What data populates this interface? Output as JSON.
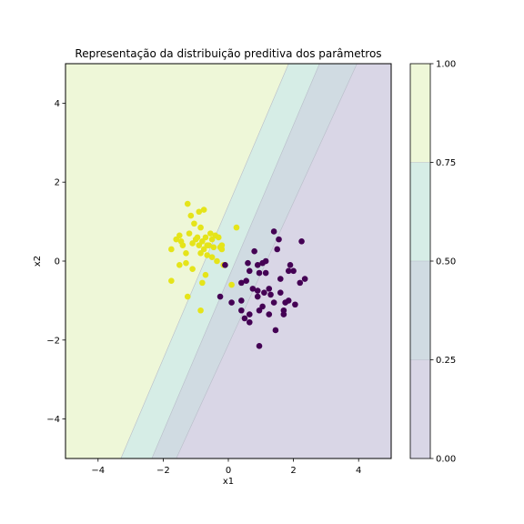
{
  "chart_data": {
    "type": "scatter",
    "title": "Representação da distribuição preditiva dos parâmetros",
    "xlabel": "x1",
    "ylabel": "x2",
    "xlim": [
      -5,
      5
    ],
    "ylim": [
      -5,
      5
    ],
    "x_ticks": [
      -4,
      -2,
      0,
      2,
      4
    ],
    "y_ticks": [
      -4,
      -2,
      0,
      2,
      4
    ],
    "x_tick_labels": [
      "−4",
      "−2",
      "0",
      "2",
      "4"
    ],
    "y_tick_labels": [
      "−4",
      "−2",
      "0",
      "2",
      "4"
    ],
    "grid": false,
    "contour": {
      "type": "filled_contour",
      "levels": [
        0.0,
        0.25,
        0.5,
        0.75,
        1.0
      ],
      "level_labels": [
        "0.00",
        "0.25",
        "0.50",
        "0.75",
        "1.00"
      ],
      "colors": [
        "#d9d6e6",
        "#d0dbe2",
        "#d6ede6",
        "#eef7d8"
      ],
      "boundaries": [
        [
          [
            -1.6,
            -5
          ],
          [
            3.95,
            5
          ]
        ],
        [
          [
            -2.35,
            -5
          ],
          [
            2.8,
            5
          ]
        ],
        [
          [
            -3.3,
            -5
          ],
          [
            1.85,
            5
          ]
        ]
      ]
    },
    "colorbar": {
      "ticks": [
        0.0,
        0.25,
        0.5,
        0.75,
        1.0
      ],
      "tick_labels": [
        "0.00",
        "0.25",
        "0.50",
        "0.75",
        "1.00"
      ]
    },
    "series": [
      {
        "class": 1,
        "color": "#e5e419",
        "points": [
          [
            -1.6,
            0.55
          ],
          [
            -1.5,
            0.65
          ],
          [
            -1.4,
            0.4
          ],
          [
            -1.3,
            0.2
          ],
          [
            -1.2,
            0.7
          ],
          [
            -1.1,
            0.45
          ],
          [
            -1.0,
            0.55
          ],
          [
            -0.9,
            0.4
          ],
          [
            -0.85,
            0.2
          ],
          [
            -0.8,
            0.5
          ],
          [
            -0.75,
            0.3
          ],
          [
            -0.7,
            0.6
          ],
          [
            -0.65,
            0.15
          ],
          [
            -0.6,
            0.4
          ],
          [
            -0.55,
            0.7
          ],
          [
            -0.5,
            0.55
          ],
          [
            -0.45,
            0.35
          ],
          [
            -0.4,
            0.65
          ],
          [
            -0.3,
            0.6
          ],
          [
            -0.25,
            0.35
          ],
          [
            -0.2,
            0.3
          ],
          [
            -0.15,
            -0.1
          ],
          [
            -0.1,
            -0.1
          ],
          [
            0.25,
            0.85
          ],
          [
            -1.25,
            1.45
          ],
          [
            -1.15,
            1.15
          ],
          [
            -0.9,
            1.25
          ],
          [
            -0.75,
            1.3
          ],
          [
            -0.85,
            0.85
          ],
          [
            -1.05,
            0.95
          ],
          [
            -1.75,
            0.3
          ],
          [
            -1.5,
            -0.1
          ],
          [
            -1.3,
            -0.05
          ],
          [
            -1.1,
            -0.2
          ],
          [
            -0.7,
            -0.35
          ],
          [
            -0.8,
            -0.55
          ],
          [
            -1.75,
            -0.5
          ],
          [
            -1.25,
            -0.9
          ],
          [
            -0.85,
            -1.25
          ],
          [
            0.1,
            -0.6
          ],
          [
            -0.65,
            0.4
          ],
          [
            -0.95,
            0.6
          ],
          [
            -0.5,
            0.1
          ],
          [
            -0.35,
            0.0
          ],
          [
            -0.2,
            0.4
          ],
          [
            -1.45,
            0.5
          ]
        ]
      },
      {
        "class": 0,
        "color": "#440154",
        "points": [
          [
            1.4,
            0.75
          ],
          [
            1.55,
            0.55
          ],
          [
            2.25,
            0.5
          ],
          [
            1.5,
            0.3
          ],
          [
            0.8,
            0.25
          ],
          [
            1.15,
            0.0
          ],
          [
            1.05,
            -0.05
          ],
          [
            0.9,
            -0.1
          ],
          [
            0.6,
            -0.05
          ],
          [
            1.9,
            -0.1
          ],
          [
            1.85,
            -0.25
          ],
          [
            2.0,
            -0.25
          ],
          [
            0.65,
            -0.25
          ],
          [
            0.95,
            -0.3
          ],
          [
            1.15,
            -0.3
          ],
          [
            2.35,
            -0.45
          ],
          [
            1.6,
            -0.45
          ],
          [
            0.55,
            -0.5
          ],
          [
            0.4,
            -0.55
          ],
          [
            2.2,
            -0.55
          ],
          [
            0.75,
            -0.7
          ],
          [
            1.25,
            -0.7
          ],
          [
            0.9,
            -0.75
          ],
          [
            1.3,
            -0.85
          ],
          [
            1.1,
            -0.8
          ],
          [
            1.6,
            -0.8
          ],
          [
            0.9,
            -0.9
          ],
          [
            -0.25,
            -0.9
          ],
          [
            0.4,
            -1.0
          ],
          [
            0.1,
            -1.05
          ],
          [
            1.4,
            -1.05
          ],
          [
            1.85,
            -1.0
          ],
          [
            1.75,
            -1.05
          ],
          [
            2.05,
            -1.1
          ],
          [
            1.05,
            -1.15
          ],
          [
            1.7,
            -1.25
          ],
          [
            0.95,
            -1.25
          ],
          [
            0.4,
            -1.25
          ],
          [
            0.65,
            -1.35
          ],
          [
            1.25,
            -1.35
          ],
          [
            0.5,
            -1.45
          ],
          [
            1.7,
            -1.35
          ],
          [
            0.65,
            -1.55
          ],
          [
            1.45,
            -1.75
          ],
          [
            0.95,
            -2.15
          ],
          [
            -0.1,
            -0.1
          ]
        ]
      }
    ]
  }
}
